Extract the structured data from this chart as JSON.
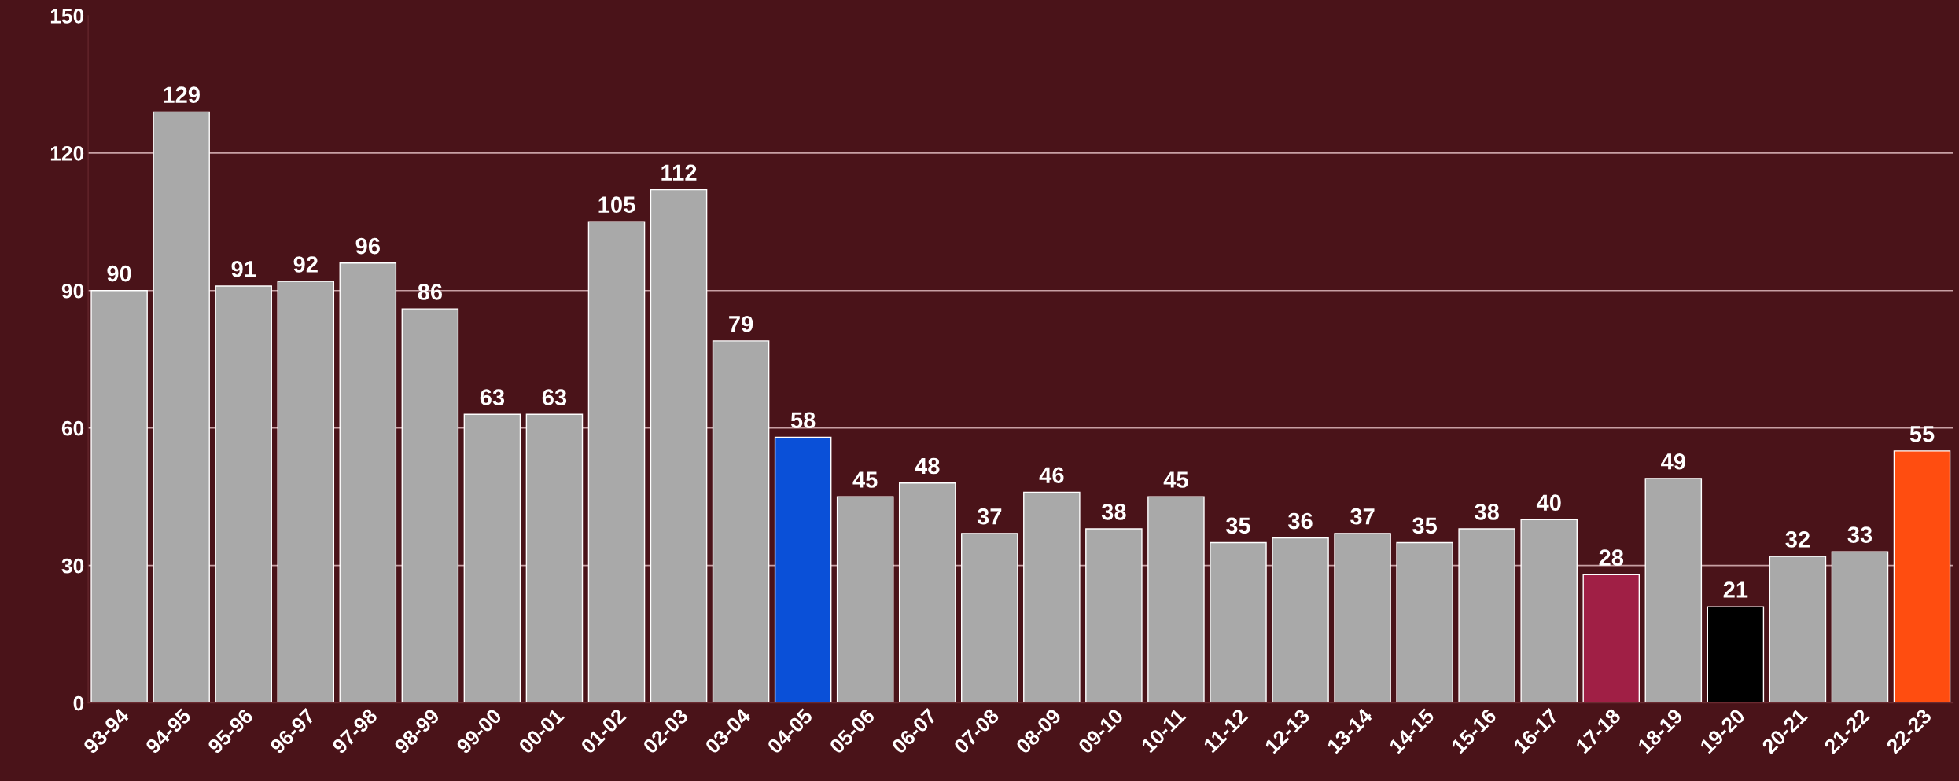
{
  "chart_data": {
    "type": "bar",
    "categories": [
      "93-94",
      "94-95",
      "95-96",
      "96-97",
      "97-98",
      "98-99",
      "99-00",
      "00-01",
      "01-02",
      "02-03",
      "03-04",
      "04-05",
      "05-06",
      "06-07",
      "07-08",
      "08-09",
      "09-10",
      "10-11",
      "11-12",
      "12-13",
      "13-14",
      "14-15",
      "15-16",
      "16-17",
      "17-18",
      "18-19",
      "19-20",
      "20-21",
      "21-22",
      "22-23"
    ],
    "values": [
      90,
      129,
      91,
      92,
      96,
      86,
      63,
      63,
      105,
      112,
      79,
      58,
      45,
      48,
      37,
      46,
      38,
      45,
      35,
      36,
      37,
      35,
      38,
      40,
      28,
      49,
      21,
      32,
      33,
      55
    ],
    "colors": [
      "#a9a9a9",
      "#a9a9a9",
      "#a9a9a9",
      "#a9a9a9",
      "#a9a9a9",
      "#a9a9a9",
      "#a9a9a9",
      "#a9a9a9",
      "#a9a9a9",
      "#a9a9a9",
      "#a9a9a9",
      "#0a50d8",
      "#a9a9a9",
      "#a9a9a9",
      "#a9a9a9",
      "#a9a9a9",
      "#a9a9a9",
      "#a9a9a9",
      "#a9a9a9",
      "#a9a9a9",
      "#a9a9a9",
      "#a9a9a9",
      "#a9a9a9",
      "#a9a9a9",
      "#a01f45",
      "#a9a9a9",
      "#000000",
      "#a9a9a9",
      "#a9a9a9",
      "#ff4d10"
    ],
    "ylim": [
      0,
      150
    ],
    "yticks": [
      0,
      30,
      60,
      90,
      120,
      150
    ],
    "grid": "y",
    "data_labels": true
  }
}
